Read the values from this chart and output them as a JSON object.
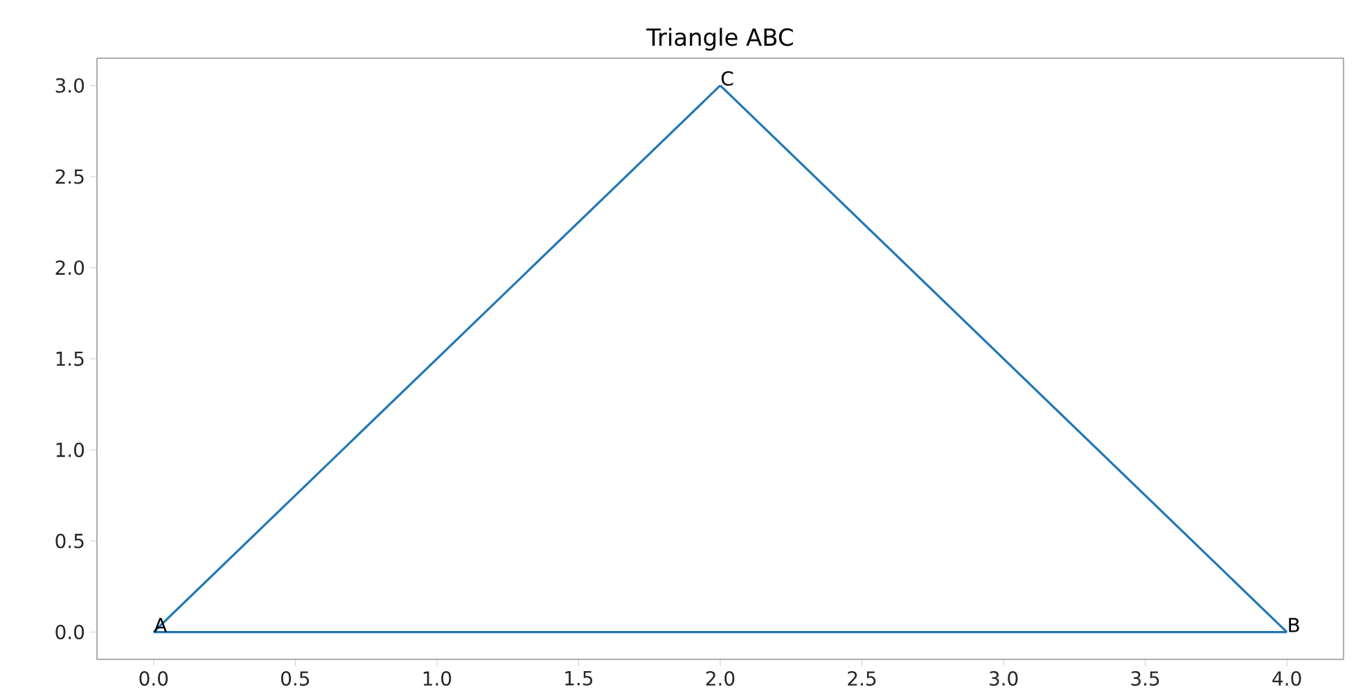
{
  "chart_data": {
    "type": "line",
    "title": "Triangle ABC",
    "series": [
      {
        "color": "#1f77b4",
        "x": [
          0,
          4
        ],
        "values": [
          0,
          0
        ]
      },
      {
        "color": "#1f77b4",
        "x": [
          2,
          4
        ],
        "values": [
          3,
          0
        ]
      },
      {
        "color": "#1f77b4",
        "x": [
          0,
          2
        ],
        "values": [
          0,
          3
        ]
      }
    ],
    "xlim": [
      -0.2,
      4.2
    ],
    "ylim": [
      -0.15,
      3.15
    ],
    "xticks": [
      {
        "value": 0,
        "label": "0.0"
      },
      {
        "value": 0.5,
        "label": "0.5"
      },
      {
        "value": 1,
        "label": "1.0"
      },
      {
        "value": 1.5,
        "label": "1.5"
      },
      {
        "value": 2,
        "label": "2.0"
      },
      {
        "value": 2.5,
        "label": "2.5"
      },
      {
        "value": 3,
        "label": "3.0"
      },
      {
        "value": 3.5,
        "label": "3.5"
      },
      {
        "value": 4,
        "label": "4.0"
      }
    ],
    "yticks": [
      {
        "value": 0,
        "label": "0.0"
      },
      {
        "value": 0.5,
        "label": "0.5"
      },
      {
        "value": 1,
        "label": "1.0"
      },
      {
        "value": 1.5,
        "label": "1.5"
      },
      {
        "value": 2,
        "label": "2.0"
      },
      {
        "value": 2.5,
        "label": "2.5"
      },
      {
        "value": 3,
        "label": "3.0"
      }
    ],
    "annotations": [
      {
        "text": "A",
        "x": 0,
        "y": 0
      },
      {
        "text": "B",
        "x": 4,
        "y": 0
      },
      {
        "text": "C",
        "x": 2,
        "y": 3
      }
    ]
  }
}
